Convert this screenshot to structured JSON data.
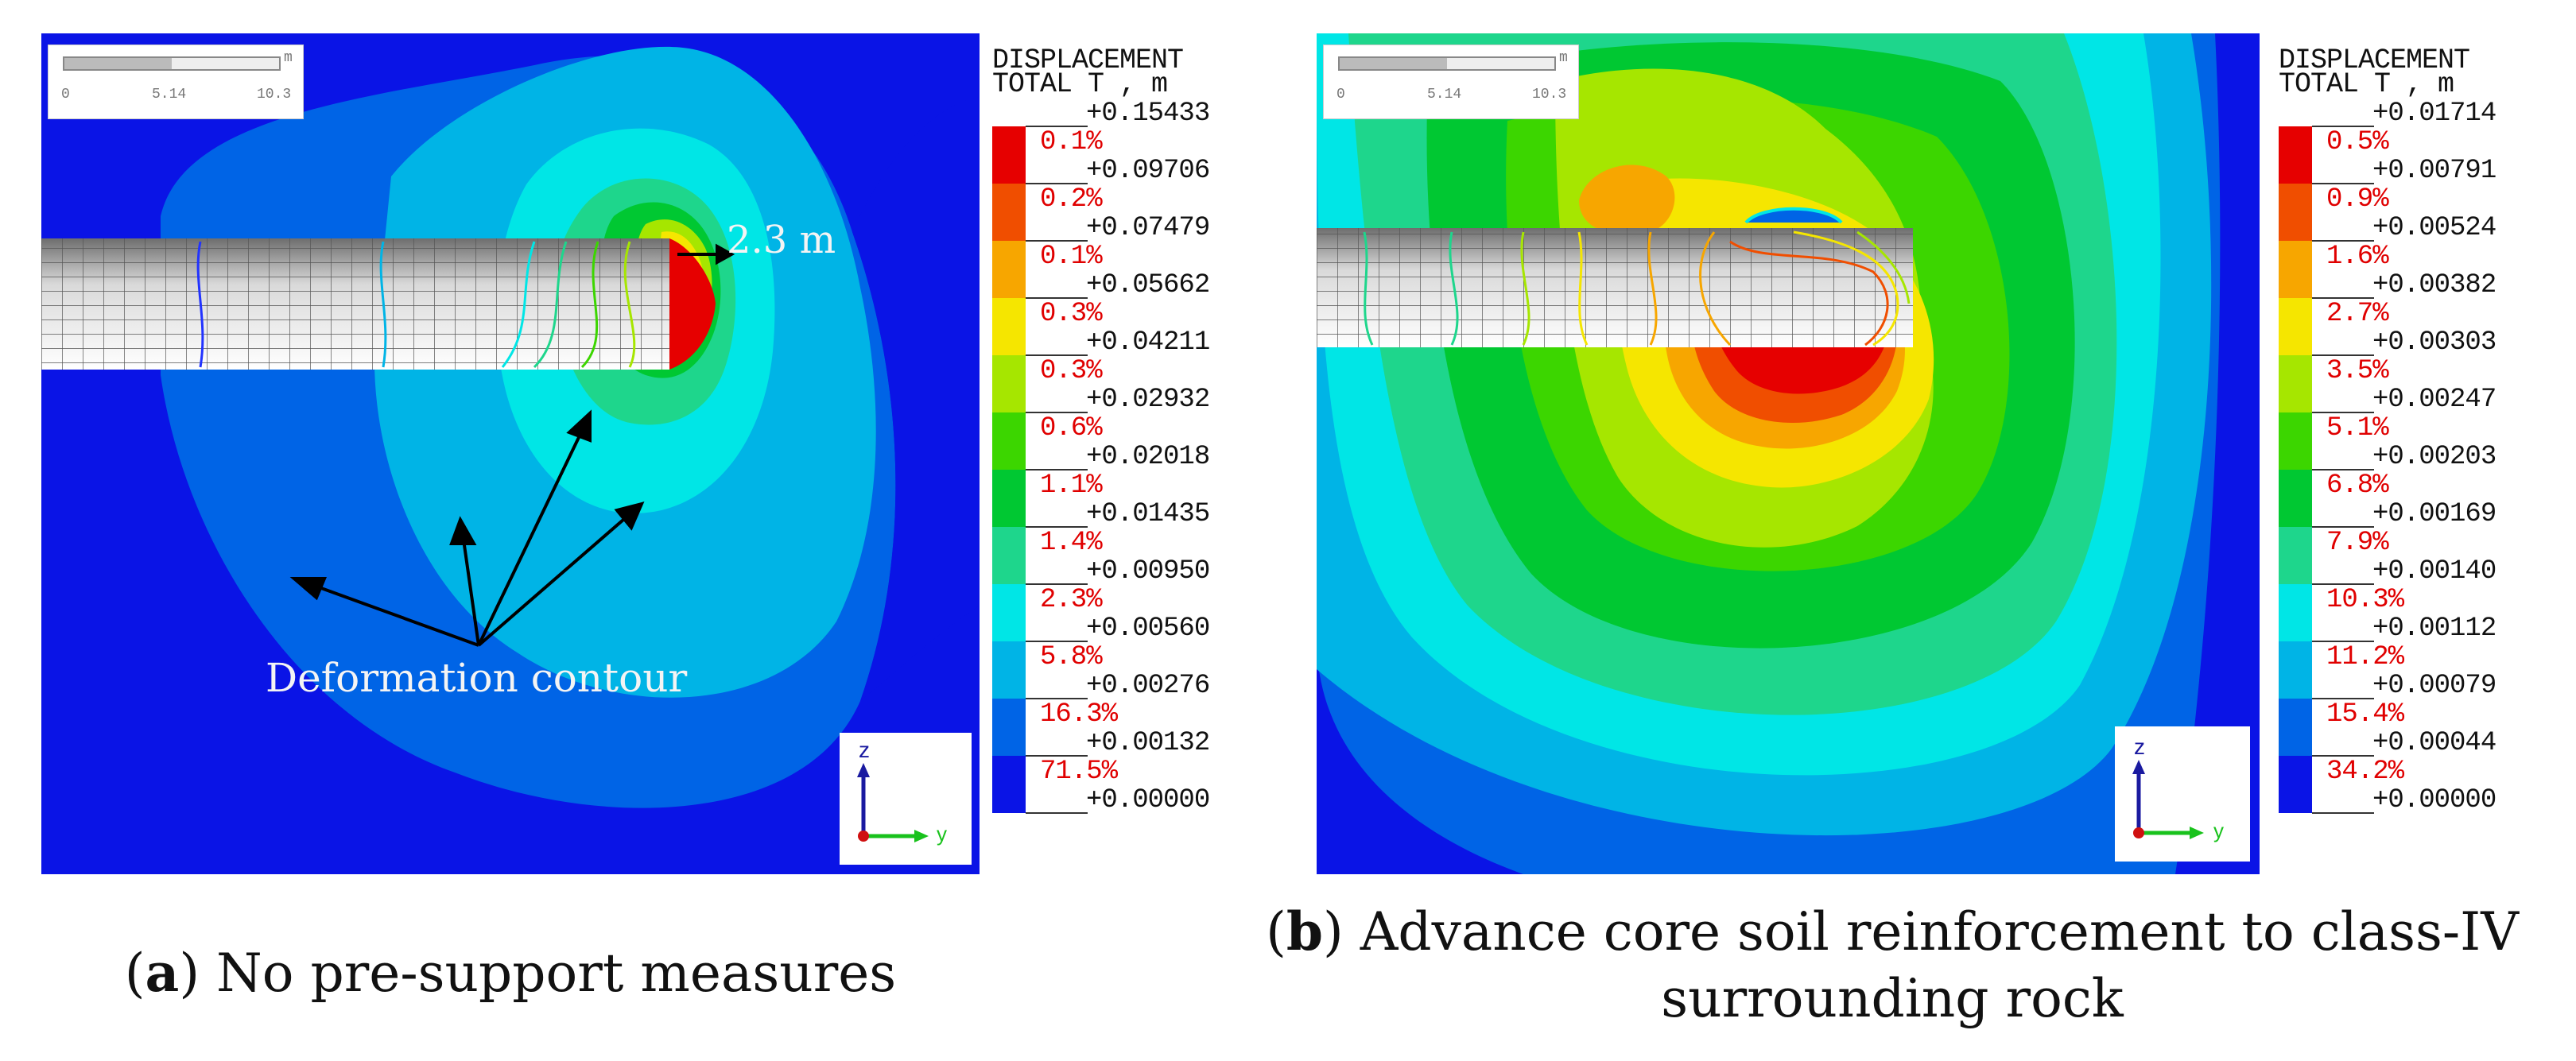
{
  "panel_a": {
    "legend": {
      "title_line1": "DISPLACEMENT",
      "title_line2": "TOTAL T , m",
      "values": [
        "+0.15433",
        "+0.09706",
        "+0.07479",
        "+0.05662",
        "+0.04211",
        "+0.02932",
        "+0.02018",
        "+0.01435",
        "+0.00950",
        "+0.00560",
        "+0.00276",
        "+0.00132",
        "+0.00000"
      ],
      "percents": [
        "0.1%",
        "0.2%",
        "0.1%",
        "0.3%",
        "0.3%",
        "0.6%",
        "1.1%",
        "1.4%",
        "2.3%",
        "5.8%",
        "16.3%",
        "71.5%"
      ]
    },
    "scale": {
      "tick0": "0",
      "tick1": "5.14",
      "tick2": "10.3",
      "unit": "m"
    },
    "annotation_distance": "2.3 m",
    "annotation_contour": "Deformation contour",
    "axis": {
      "z": "z",
      "y": "y"
    },
    "caption_label": "a",
    "caption_text": "No pre-support measures"
  },
  "panel_b": {
    "legend": {
      "title_line1": "DISPLACEMENT",
      "title_line2": "TOTAL T , m",
      "values": [
        "+0.01714",
        "+0.00791",
        "+0.00524",
        "+0.00382",
        "+0.00303",
        "+0.00247",
        "+0.00203",
        "+0.00169",
        "+0.00140",
        "+0.00112",
        "+0.00079",
        "+0.00044",
        "+0.00000"
      ],
      "percents": [
        "0.5%",
        "0.9%",
        "1.6%",
        "2.7%",
        "3.5%",
        "5.1%",
        "6.8%",
        "7.9%",
        "10.3%",
        "11.2%",
        "15.4%",
        "34.2%"
      ]
    },
    "scale": {
      "tick0": "0",
      "tick1": "5.14",
      "tick2": "10.3",
      "unit": "m"
    },
    "axis": {
      "z": "z",
      "y": "y"
    },
    "caption_label": "b",
    "caption_text_line1": "Advance core soil reinforcement to class-IV",
    "caption_text_line2": "surrounding rock"
  },
  "colors": {
    "levels": [
      "#e60000",
      "#f04e00",
      "#f7a600",
      "#f5e600",
      "#a6e600",
      "#3cd600",
      "#00c832",
      "#1ed68c",
      "#00e6e6",
      "#00b4e6",
      "#0064e6",
      "#0a14e6"
    ]
  }
}
